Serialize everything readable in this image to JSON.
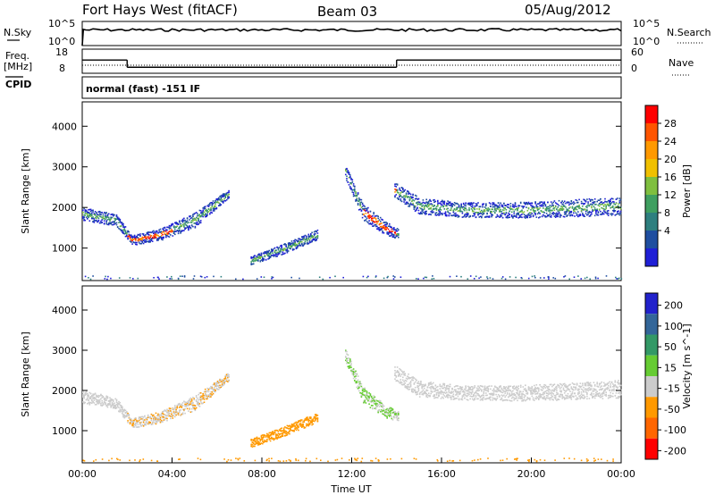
{
  "header": {
    "station": "Fort Hays West (fitACF)",
    "beam": "Beam 03",
    "date": "05/Aug/2012"
  },
  "colors": {
    "power": [
      "#1f1fd6",
      "#1f4ea0",
      "#2e7f7f",
      "#3f9f60",
      "#7fbf3f",
      "#f0c000",
      "#ff9900",
      "#ff5500",
      "#ff0000"
    ],
    "velocity": [
      "#2222cc",
      "#336699",
      "#339966",
      "#66cc33",
      "#cccccc",
      "#ff9900",
      "#ff6600",
      "#ff0000"
    ]
  },
  "chart_data": [
    {
      "type": "line",
      "panel": "noise",
      "left_label": [
        "N.Sky",
        "10^5",
        "10^0"
      ],
      "right_label": [
        "N.Search",
        "10^5",
        "10^0"
      ],
      "x": [
        "00:00",
        "24:00"
      ],
      "values_log10": [
        4.0,
        4.0
      ]
    },
    {
      "type": "line",
      "panel": "frequency",
      "left_label": [
        "Freq.",
        "[MHz]",
        "CPID"
      ],
      "left_ticks": [
        "18",
        "8"
      ],
      "right_label": "Nave",
      "right_ticks": [
        "60",
        "0"
      ],
      "freq_steps_hours": [
        [
          0,
          2,
          13.5
        ],
        [
          2,
          14,
          10.5
        ],
        [
          14,
          24,
          13.5
        ]
      ],
      "cpid": "normal (fast) -151 IF"
    },
    {
      "type": "heatmap",
      "panel": "power",
      "ylabel": "Slant Range [km]",
      "yticks": [
        "1000",
        "2000",
        "3000",
        "4000"
      ],
      "ylim": [
        200,
        4600
      ],
      "colorbar_label": "Power [dB]",
      "colorbar_ticks": [
        "4",
        "8",
        "12",
        "16",
        "20",
        "24",
        "28"
      ],
      "clim": [
        0,
        30
      ]
    },
    {
      "type": "heatmap",
      "panel": "velocity",
      "ylabel": "Slant Range [km]",
      "yticks": [
        "1000",
        "2000",
        "3000",
        "4000"
      ],
      "ylim": [
        200,
        4600
      ],
      "colorbar_label": "Velocity [m s^-1]",
      "colorbar_ticks": [
        "200",
        "100",
        "50",
        "15",
        "-15",
        "-50",
        "-100",
        "-200"
      ],
      "xlabel": "Time UT",
      "xticks": [
        "00:00",
        "04:00",
        "08:00",
        "12:00",
        "16:00",
        "20:00",
        "00:00"
      ],
      "xlim_hours": [
        0,
        24
      ]
    }
  ]
}
